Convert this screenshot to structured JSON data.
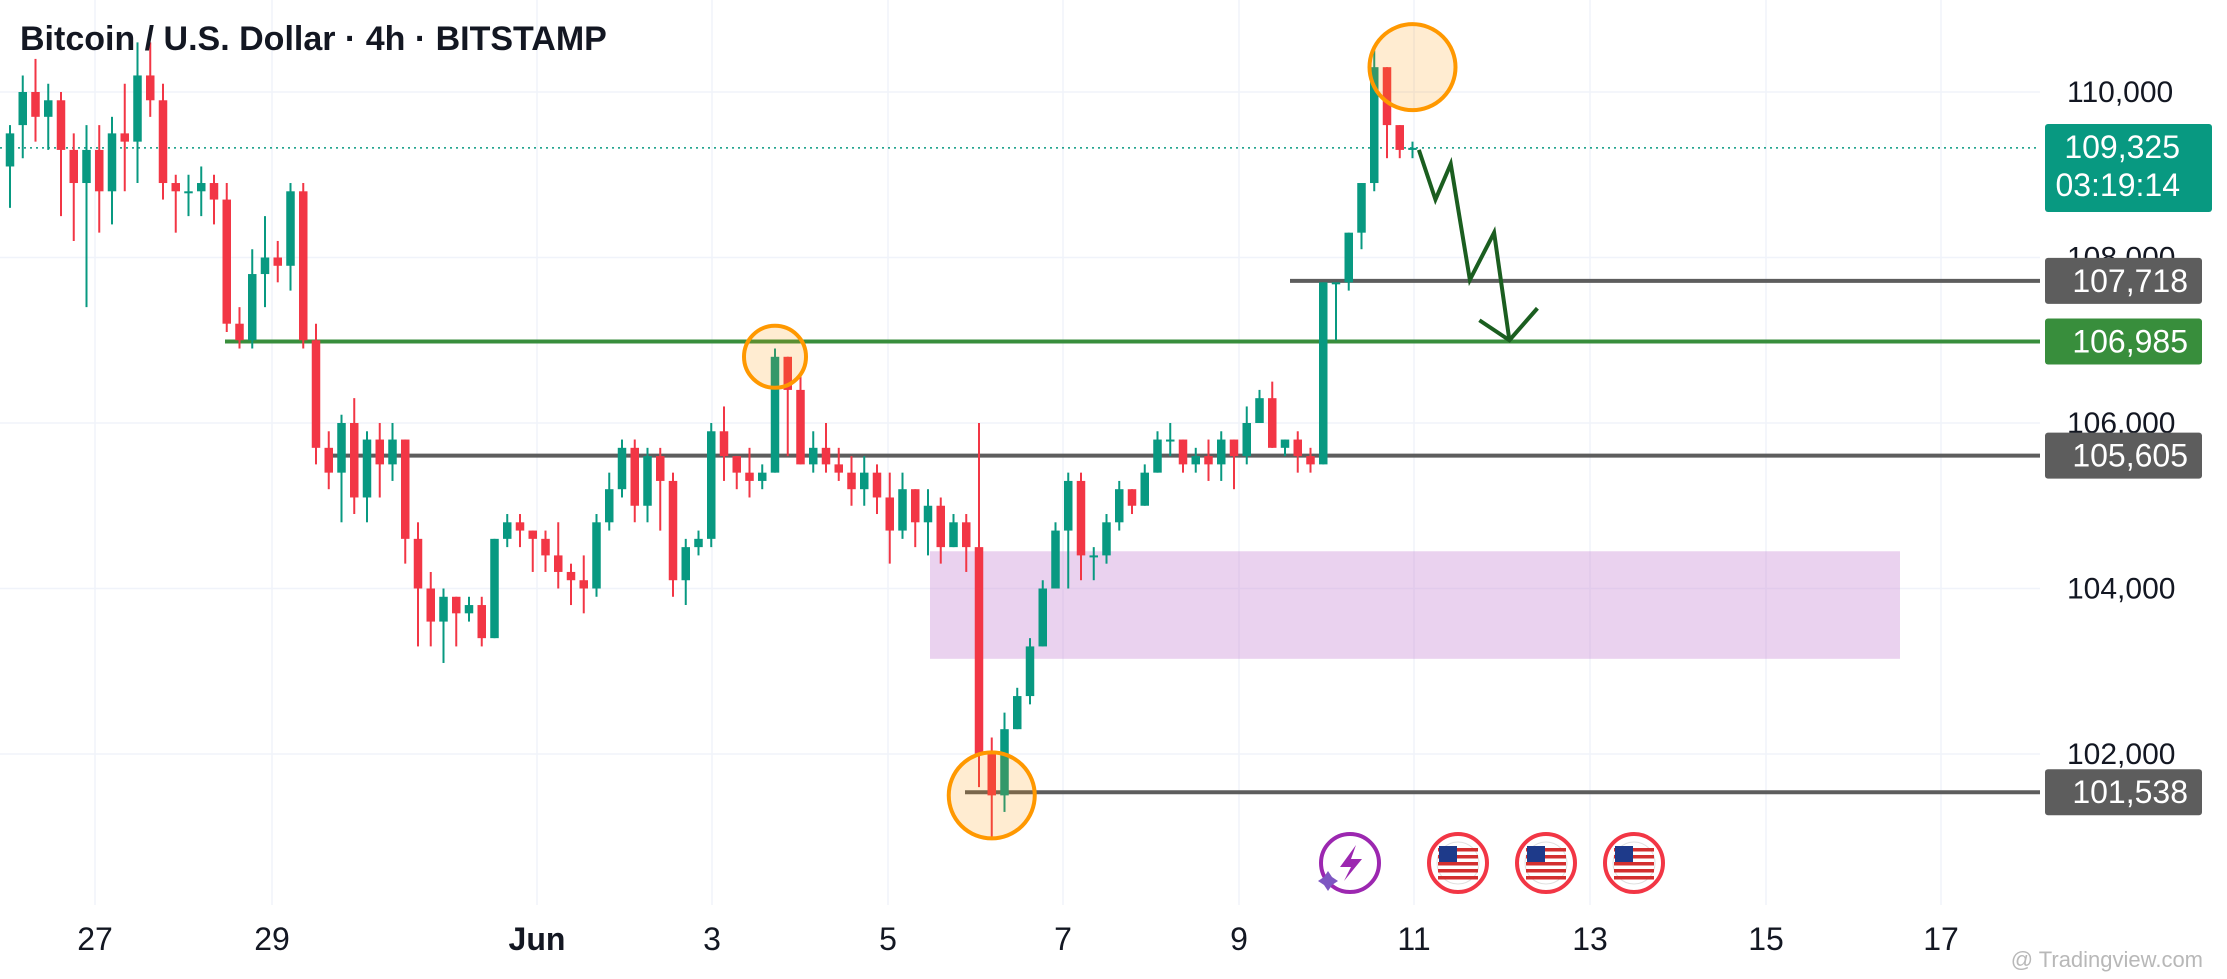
{
  "header": {
    "title": "Bitcoin / U.S. Dollar · 4h · BITSTAMP"
  },
  "watermark": "@ Tradingview.com",
  "colors": {
    "up": "#089981",
    "down": "#f23645",
    "level": "#5d5d5d",
    "support": "#388e3c",
    "highlight": "#ff9800",
    "zone": "#ce93d8",
    "arrow": "#1b5e20",
    "lastPrice": "#089981"
  },
  "chart_data": {
    "type": "candlestick",
    "title": "Bitcoin / U.S. Dollar · 4h · BITSTAMP",
    "ylim": [
      100300,
      111300
    ],
    "y_ticks": [
      {
        "value": 110000,
        "label": "110,000"
      },
      {
        "value": 108000,
        "label": "108,000"
      },
      {
        "value": 106000,
        "label": "106,000"
      },
      {
        "value": 104000,
        "label": "104,000"
      },
      {
        "value": 102000,
        "label": "102,000"
      }
    ],
    "x_ticks": [
      {
        "label": "27",
        "bold": false
      },
      {
        "label": "29",
        "bold": false
      },
      {
        "label": "Jun",
        "bold": true
      },
      {
        "label": "3",
        "bold": false
      },
      {
        "label": "5",
        "bold": false
      },
      {
        "label": "7",
        "bold": false
      },
      {
        "label": "9",
        "bold": false
      },
      {
        "label": "11",
        "bold": false
      },
      {
        "label": "13",
        "bold": false
      },
      {
        "label": "15",
        "bold": false
      },
      {
        "label": "17",
        "bold": false
      }
    ],
    "candles": [
      [
        109100,
        109500,
        108600,
        109600
      ],
      [
        109600,
        110000,
        109200,
        110200
      ],
      [
        110000,
        109700,
        109400,
        110400
      ],
      [
        109700,
        109900,
        109300,
        110100
      ],
      [
        109900,
        109300,
        108500,
        110000
      ],
      [
        109300,
        108900,
        108200,
        109500
      ],
      [
        108900,
        109300,
        107400,
        109600
      ],
      [
        109300,
        108800,
        108300,
        109600
      ],
      [
        108800,
        109500,
        108400,
        109700
      ],
      [
        109500,
        109400,
        108800,
        110100
      ],
      [
        109400,
        110200,
        108900,
        110600
      ],
      [
        110200,
        109900,
        109700,
        110600
      ],
      [
        109900,
        108900,
        108700,
        110100
      ],
      [
        108900,
        108800,
        108300,
        109000
      ],
      [
        108800,
        108800,
        108500,
        109000
      ],
      [
        108800,
        108900,
        108500,
        109100
      ],
      [
        108900,
        108700,
        108400,
        109000
      ],
      [
        108700,
        107200,
        107100,
        108900
      ],
      [
        107200,
        107000,
        106900,
        107400
      ],
      [
        107000,
        107800,
        106900,
        108100
      ],
      [
        107800,
        108000,
        107400,
        108500
      ],
      [
        108000,
        107900,
        107700,
        108200
      ],
      [
        107900,
        108800,
        107600,
        108900
      ],
      [
        108800,
        107000,
        106900,
        108900
      ],
      [
        107000,
        105700,
        105500,
        107200
      ],
      [
        105700,
        105400,
        105200,
        105900
      ],
      [
        105400,
        106000,
        104800,
        106100
      ],
      [
        106000,
        105100,
        104900,
        106300
      ],
      [
        105100,
        105800,
        104800,
        105900
      ],
      [
        105800,
        105500,
        105100,
        106000
      ],
      [
        105500,
        105800,
        105300,
        106000
      ],
      [
        105800,
        104600,
        104300,
        105800
      ],
      [
        104600,
        104000,
        103300,
        104800
      ],
      [
        104000,
        103600,
        103300,
        104200
      ],
      [
        103600,
        103900,
        103100,
        104000
      ],
      [
        103900,
        103700,
        103300,
        103900
      ],
      [
        103700,
        103800,
        103600,
        103900
      ],
      [
        103800,
        103400,
        103300,
        103900
      ],
      [
        103400,
        104600,
        103400,
        104600
      ],
      [
        104600,
        104800,
        104500,
        104900
      ],
      [
        104800,
        104700,
        104500,
        104900
      ],
      [
        104700,
        104600,
        104200,
        104700
      ],
      [
        104600,
        104400,
        104200,
        104700
      ],
      [
        104400,
        104200,
        104000,
        104800
      ],
      [
        104200,
        104100,
        103800,
        104300
      ],
      [
        104100,
        104000,
        103700,
        104400
      ],
      [
        104000,
        104800,
        103900,
        104900
      ],
      [
        104800,
        105200,
        104700,
        105400
      ],
      [
        105200,
        105700,
        105100,
        105800
      ],
      [
        105700,
        105000,
        104800,
        105800
      ],
      [
        105000,
        105600,
        104800,
        105700
      ],
      [
        105600,
        105300,
        104700,
        105700
      ],
      [
        105300,
        104100,
        103900,
        105400
      ],
      [
        104100,
        104500,
        103800,
        104600
      ],
      [
        104500,
        104600,
        104400,
        104700
      ],
      [
        104600,
        105900,
        104500,
        106000
      ],
      [
        105900,
        105600,
        105300,
        106200
      ],
      [
        105600,
        105400,
        105200,
        105600
      ],
      [
        105400,
        105300,
        105100,
        105700
      ],
      [
        105300,
        105400,
        105200,
        105500
      ],
      [
        105400,
        106800,
        105400,
        106900
      ],
      [
        106800,
        106400,
        105600,
        106800
      ],
      [
        106400,
        105500,
        105500,
        106600
      ],
      [
        105500,
        105700,
        105400,
        105900
      ],
      [
        105700,
        105500,
        105400,
        106000
      ],
      [
        105500,
        105400,
        105300,
        105700
      ],
      [
        105400,
        105200,
        105000,
        105600
      ],
      [
        105200,
        105400,
        105000,
        105600
      ],
      [
        105400,
        105100,
        104900,
        105500
      ],
      [
        105100,
        104700,
        104300,
        105400
      ],
      [
        104700,
        105200,
        104600,
        105400
      ],
      [
        105200,
        104800,
        104500,
        105200
      ],
      [
        104800,
        105000,
        104400,
        105200
      ],
      [
        105000,
        104500,
        104300,
        105100
      ],
      [
        104500,
        104800,
        104500,
        104900
      ],
      [
        104800,
        104500,
        104200,
        104900
      ],
      [
        104500,
        102000,
        101600,
        106000
      ],
      [
        102000,
        101500,
        101000,
        102200
      ],
      [
        101500,
        102300,
        101300,
        102500
      ],
      [
        102300,
        102700,
        102300,
        102800
      ],
      [
        102700,
        103300,
        102600,
        103400
      ],
      [
        103300,
        104000,
        103300,
        104100
      ],
      [
        104000,
        104700,
        104000,
        104800
      ],
      [
        104700,
        105300,
        104000,
        105400
      ],
      [
        105300,
        104400,
        104100,
        105400
      ],
      [
        104400,
        104400,
        104100,
        104500
      ],
      [
        104400,
        104800,
        104300,
        104900
      ],
      [
        104800,
        105200,
        104700,
        105300
      ],
      [
        105200,
        105000,
        104900,
        105200
      ],
      [
        105000,
        105400,
        105000,
        105500
      ],
      [
        105400,
        105800,
        105400,
        105900
      ],
      [
        105800,
        105800,
        105600,
        106000
      ],
      [
        105800,
        105500,
        105400,
        105800
      ],
      [
        105500,
        105600,
        105400,
        105700
      ],
      [
        105600,
        105500,
        105300,
        105800
      ],
      [
        105500,
        105800,
        105300,
        105900
      ],
      [
        105800,
        105600,
        105200,
        105800
      ],
      [
        105600,
        106000,
        105500,
        106200
      ],
      [
        106000,
        106300,
        106000,
        106400
      ],
      [
        106300,
        105700,
        105700,
        106500
      ],
      [
        105700,
        105800,
        105600,
        105800
      ],
      [
        105800,
        105600,
        105400,
        105900
      ],
      [
        105600,
        105500,
        105400,
        105700
      ],
      [
        105500,
        107700,
        105500,
        107700
      ],
      [
        107700,
        107700,
        107000,
        107700
      ],
      [
        107700,
        108300,
        107600,
        108300
      ],
      [
        108300,
        108900,
        108100,
        108900
      ],
      [
        108900,
        110300,
        108800,
        110500
      ],
      [
        110300,
        109600,
        109200,
        110300
      ],
      [
        109600,
        109300,
        109200,
        109600
      ],
      [
        109300,
        109325,
        109200,
        109400
      ]
    ],
    "levels": [
      {
        "name": "resistance-level-107718",
        "value": 107718,
        "label": "107,718",
        "kind": "grey"
      },
      {
        "name": "support-level-106985",
        "value": 106985,
        "label": "106,985",
        "kind": "green"
      },
      {
        "name": "support-level-105605",
        "value": 105605,
        "label": "105,605",
        "kind": "grey"
      },
      {
        "name": "low-level-101538",
        "value": 101538,
        "label": "101,538",
        "kind": "grey"
      }
    ],
    "last_price": {
      "value": 109325,
      "label": "109,325",
      "countdown": "03:19:14"
    },
    "zone": {
      "from": 103150,
      "to": 104450
    },
    "highlight_circles": [
      {
        "candle": 110,
        "value": 110300
      },
      {
        "candle": 60,
        "value": 106800
      },
      {
        "candle": 77,
        "value": 101500
      }
    ],
    "projection": [
      [
        110.5,
        109300
      ],
      [
        111.8,
        108700
      ],
      [
        113.0,
        109130
      ],
      [
        114.5,
        107730
      ],
      [
        116.4,
        108300
      ],
      [
        117.6,
        107000
      ]
    ],
    "event_icons": [
      "lightning-event-icon",
      "us-flag-event-icon",
      "us-flag-event-icon",
      "us-flag-event-icon"
    ]
  }
}
